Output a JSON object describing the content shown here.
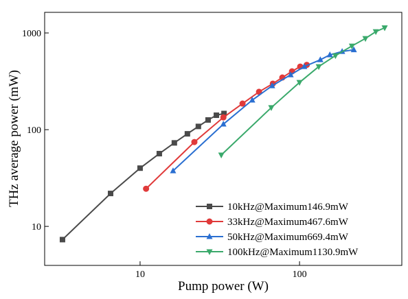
{
  "chart_data": {
    "type": "line",
    "log_x": true,
    "log_y": true,
    "x_label": "Pump power (W)",
    "y_label": "THz average power (mW)",
    "xlim": [
      2.52,
      438
    ],
    "ylim": [
      3.95,
      1633
    ],
    "xticks": [
      10,
      100
    ],
    "yticks": [
      10,
      100,
      1000
    ],
    "legend": "lower right",
    "series": [
      {
        "name": "10kHz@Maximum146.9mW",
        "color": "#4a4a4a",
        "marker": "square",
        "x": [
          3.26,
          6.53,
          10,
          13.2,
          16.4,
          19.8,
          23.2,
          26.7,
          30.1,
          33.6
        ],
        "values": [
          7.3,
          21.9,
          40,
          56.5,
          73,
          90.6,
          108,
          126,
          141,
          146.9
        ]
      },
      {
        "name": "33kHz@Maximum467.6mW",
        "color": "#e03a3a",
        "marker": "circle",
        "x": [
          10.9,
          21.9,
          33.3,
          43.9,
          55.7,
          68,
          78,
          89.7,
          101,
          111
        ],
        "values": [
          24.5,
          74.5,
          134,
          186,
          246,
          299,
          346,
          401,
          449,
          467.6
        ]
      },
      {
        "name": "50kHz@Maximum669.4mW",
        "color": "#2a6fd1",
        "marker": "triangle-up",
        "x": [
          16.1,
          33.3,
          50.5,
          67.3,
          87.9,
          107,
          135,
          155,
          185,
          219
        ],
        "values": [
          37.5,
          114,
          202,
          284,
          369,
          449,
          528,
          593,
          643,
          669.4
        ]
      },
      {
        "name": "100kHz@Maximum1130.9mW",
        "color": "#3aa96b",
        "marker": "triangle-down",
        "x": [
          32.3,
          66.5,
          100,
          132,
          168,
          213,
          259,
          301,
          342
        ],
        "values": [
          54.7,
          169,
          308,
          449,
          583,
          733,
          877,
          1032,
          1130.9
        ]
      }
    ]
  }
}
